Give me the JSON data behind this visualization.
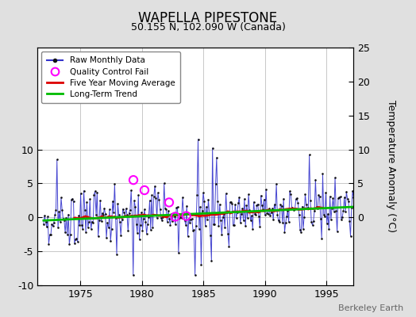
{
  "title": "WAPELLA PIPESTONE",
  "subtitle": "50.155 N, 102.090 W (Canada)",
  "ylabel": "Temperature Anomaly (°C)",
  "watermark": "Berkeley Earth",
  "xlim": [
    1971.5,
    1997.2
  ],
  "ylim": [
    -10,
    25
  ],
  "yticks_left": [
    -10,
    -5,
    0,
    5,
    10
  ],
  "yticks_right": [
    0,
    5,
    10,
    15,
    20,
    25
  ],
  "xticks": [
    1975,
    1980,
    1985,
    1990,
    1995
  ],
  "bg_color": "#e0e0e0",
  "plot_bg_color": "#ffffff",
  "grid_color": "#c8c8c8",
  "line_color": "#3333cc",
  "dot_color": "#111111",
  "moving_avg_color": "#dd0000",
  "trend_color": "#00bb00",
  "qc_color": "#ff00ff",
  "legend_items": [
    "Raw Monthly Data",
    "Quality Control Fail",
    "Five Year Moving Average",
    "Long-Term Trend"
  ],
  "title_fontsize": 12,
  "subtitle_fontsize": 9,
  "tick_fontsize": 9,
  "ylabel_fontsize": 9
}
